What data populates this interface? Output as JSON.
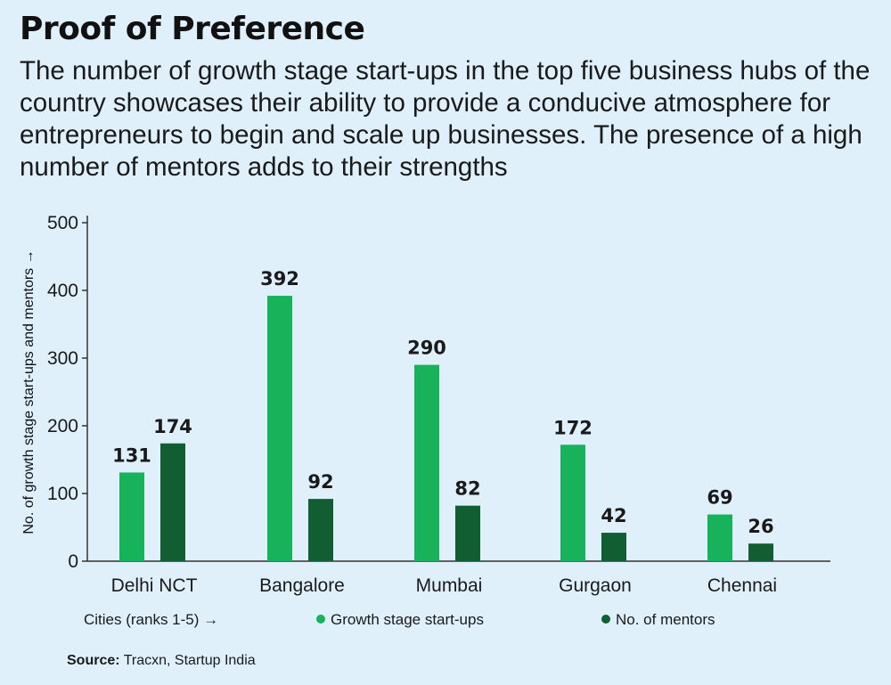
{
  "title": "Proof of Preference",
  "subtitle": "The number of growth stage start-ups in the top five business hubs of the country showcases their ability to provide a conducive atmosphere for entrepreneurs to begin and scale up businesses. The presence of a high number of mentors adds to their strengths",
  "source_label": "Source:",
  "source_text": " Tracxn, Startup India",
  "colors": {
    "growth": "#17b25a",
    "mentors": "#125e33",
    "axis": "#333333",
    "background": "#dff0fb"
  },
  "chart_data": {
    "type": "bar",
    "categories": [
      "Delhi NCT",
      "Bangalore",
      "Mumbai",
      "Gurgaon",
      "Chennai"
    ],
    "series": [
      {
        "name": "Growth stage start-ups",
        "values": [
          131,
          392,
          290,
          172,
          69
        ]
      },
      {
        "name": "No. of mentors",
        "values": [
          174,
          92,
          82,
          42,
          26
        ]
      }
    ],
    "xlabel": "Cities (ranks 1-5) →",
    "ylabel": "No. of growth stage start-ups and mentors →",
    "ylim": [
      0,
      500
    ],
    "yticks": [
      0,
      100,
      200,
      300,
      400,
      500
    ],
    "grid": false,
    "legend_position": "bottom"
  }
}
